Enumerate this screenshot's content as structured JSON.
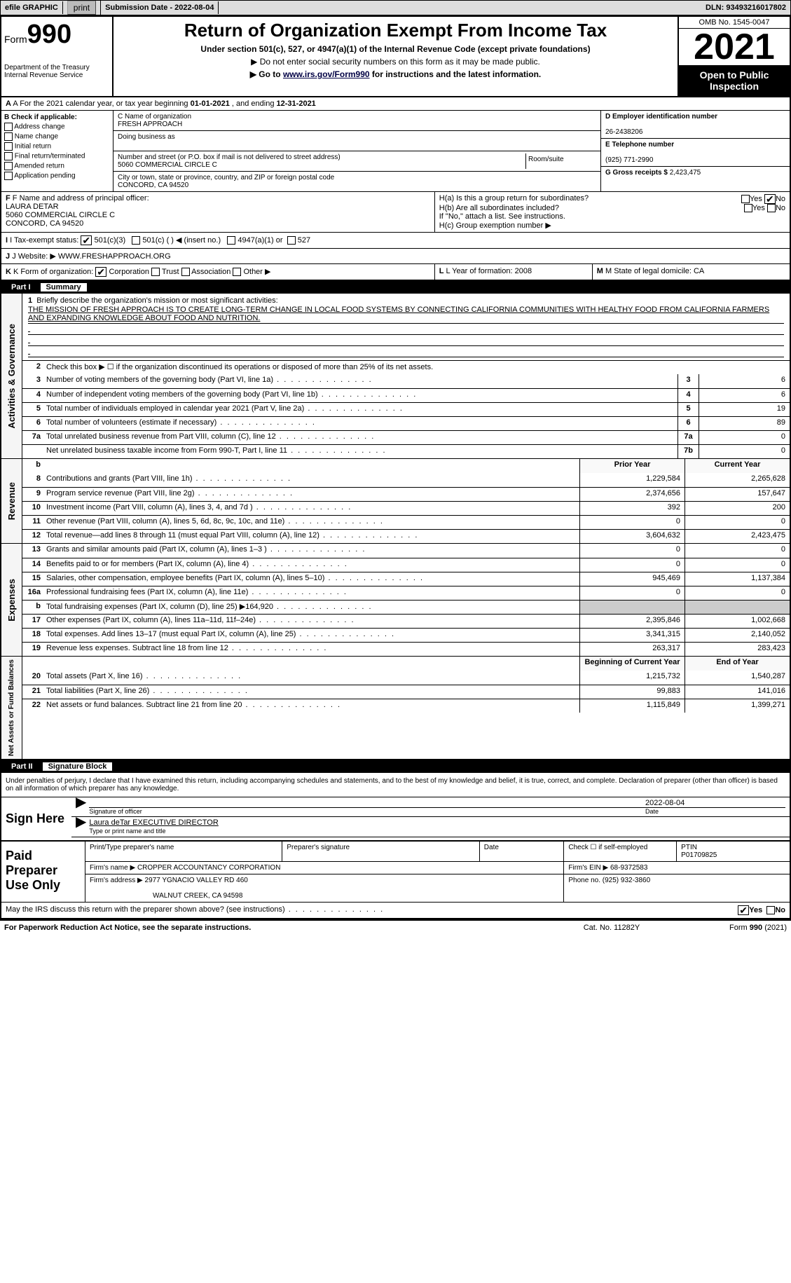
{
  "topbar": {
    "efile": "efile GRAPHIC",
    "print": "print",
    "submission_label": "Submission Date - ",
    "submission_date": "2022-08-04",
    "dln_label": "DLN: ",
    "dln": "93493216017802"
  },
  "header": {
    "form_word": "Form",
    "form_num": "990",
    "title": "Return of Organization Exempt From Income Tax",
    "subtitle": "Under section 501(c), 527, or 4947(a)(1) of the Internal Revenue Code (except private foundations)",
    "note1": "▶ Do not enter social security numbers on this form as it may be made public.",
    "note2": "▶ Go to ",
    "link": "www.irs.gov/Form990",
    "note2b": " for instructions and the latest information.",
    "dept": "Department of the Treasury",
    "irs": "Internal Revenue Service",
    "omb": "OMB No. 1545-0047",
    "year": "2021",
    "inspect1": "Open to Public",
    "inspect2": "Inspection"
  },
  "a": {
    "label": "A For the 2021 calendar year, or tax year beginning ",
    "begin": "01-01-2021",
    "mid": " , and ending ",
    "end": "12-31-2021"
  },
  "b": {
    "label": "B Check if applicable:",
    "opts": [
      "Address change",
      "Name change",
      "Initial return",
      "Final return/terminated",
      "Amended return",
      "Application pending"
    ]
  },
  "c": {
    "name_label": "C Name of organization",
    "name": "FRESH APPROACH",
    "dba_label": "Doing business as",
    "street_label": "Number and street (or P.O. box if mail is not delivered to street address)",
    "room_label": "Room/suite",
    "street": "5060 COMMERCIAL CIRCLE C",
    "city_label": "City or town, state or province, country, and ZIP or foreign postal code",
    "city": "CONCORD, CA  94520"
  },
  "d": {
    "label": "D Employer identification number",
    "value": "26-2438206"
  },
  "e": {
    "label": "E Telephone number",
    "value": "(925) 771-2990"
  },
  "g": {
    "label": "G Gross receipts $ ",
    "value": "2,423,475"
  },
  "f": {
    "label": "F  Name and address of principal officer:",
    "name": "LAURA DETAR",
    "street": "5060 COMMERCIAL CIRCLE C",
    "city": "CONCORD, CA  94520"
  },
  "h": {
    "a": "H(a)  Is this a group return for subordinates?",
    "b": "H(b)  Are all subordinates included?",
    "note": "If \"No,\" attach a list. See instructions.",
    "c": "H(c)  Group exemption number ▶",
    "yes": "Yes",
    "no": "No"
  },
  "i": {
    "label": "I  Tax-exempt status:",
    "o1": "501(c)(3)",
    "o2": "501(c) (   ) ◀ (insert no.)",
    "o3": "4947(a)(1) or",
    "o4": "527"
  },
  "j": {
    "label": "J  Website: ▶  ",
    "value": "WWW.FRESHAPPROACH.ORG"
  },
  "k": {
    "label": "K Form of organization:",
    "o1": "Corporation",
    "o2": "Trust",
    "o3": "Association",
    "o4": "Other ▶"
  },
  "l": {
    "label": "L Year of formation: ",
    "value": "2008"
  },
  "m": {
    "label": "M State of legal domicile: ",
    "value": "CA"
  },
  "part1": {
    "num": "Part I",
    "title": "Summary"
  },
  "sides": {
    "ag": "Activities & Governance",
    "rev": "Revenue",
    "exp": "Expenses",
    "na": "Net Assets or Fund Balances"
  },
  "s1": {
    "label": "Briefly describe the organization's mission or most significant activities:",
    "text": "THE MISSION OF FRESH APPROACH IS TO CREATE LONG-TERM CHANGE IN LOCAL FOOD SYSTEMS BY CONNECTING CALIFORNIA COMMUNITIES WITH HEALTHY FOOD FROM CALIFORNIA FARMERS AND EXPANDING KNOWLEDGE ABOUT FOOD AND NUTRITION."
  },
  "s2": "Check this box ▶ ☐ if the organization discontinued its operations or disposed of more than 25% of its net assets.",
  "lines_ag": [
    {
      "n": "3",
      "d": "Number of voting members of the governing body (Part VI, line 1a)",
      "box": "3",
      "v": "6"
    },
    {
      "n": "4",
      "d": "Number of independent voting members of the governing body (Part VI, line 1b)",
      "box": "4",
      "v": "6"
    },
    {
      "n": "5",
      "d": "Total number of individuals employed in calendar year 2021 (Part V, line 2a)",
      "box": "5",
      "v": "19"
    },
    {
      "n": "6",
      "d": "Total number of volunteers (estimate if necessary)",
      "box": "6",
      "v": "89"
    },
    {
      "n": "7a",
      "d": "Total unrelated business revenue from Part VIII, column (C), line 12",
      "box": "7a",
      "v": "0"
    },
    {
      "n": "",
      "d": "Net unrelated business taxable income from Form 990-T, Part I, line 11",
      "box": "7b",
      "v": "0"
    }
  ],
  "col_hdr": {
    "prior": "Prior Year",
    "curr": "Current Year"
  },
  "rev": [
    {
      "n": "8",
      "d": "Contributions and grants (Part VIII, line 1h)",
      "p": "1,229,584",
      "c": "2,265,628"
    },
    {
      "n": "9",
      "d": "Program service revenue (Part VIII, line 2g)",
      "p": "2,374,656",
      "c": "157,647"
    },
    {
      "n": "10",
      "d": "Investment income (Part VIII, column (A), lines 3, 4, and 7d )",
      "p": "392",
      "c": "200"
    },
    {
      "n": "11",
      "d": "Other revenue (Part VIII, column (A), lines 5, 6d, 8c, 9c, 10c, and 11e)",
      "p": "0",
      "c": "0"
    },
    {
      "n": "12",
      "d": "Total revenue—add lines 8 through 11 (must equal Part VIII, column (A), line 12)",
      "p": "3,604,632",
      "c": "2,423,475"
    }
  ],
  "exp": [
    {
      "n": "13",
      "d": "Grants and similar amounts paid (Part IX, column (A), lines 1–3 )",
      "p": "0",
      "c": "0"
    },
    {
      "n": "14",
      "d": "Benefits paid to or for members (Part IX, column (A), line 4)",
      "p": "0",
      "c": "0"
    },
    {
      "n": "15",
      "d": "Salaries, other compensation, employee benefits (Part IX, column (A), lines 5–10)",
      "p": "945,469",
      "c": "1,137,384"
    },
    {
      "n": "16a",
      "d": "Professional fundraising fees (Part IX, column (A), line 11e)",
      "p": "0",
      "c": "0"
    },
    {
      "n": "b",
      "d": "Total fundraising expenses (Part IX, column (D), line 25) ▶164,920",
      "p": "grey",
      "c": "grey"
    },
    {
      "n": "17",
      "d": "Other expenses (Part IX, column (A), lines 11a–11d, 11f–24e)",
      "p": "2,395,846",
      "c": "1,002,668"
    },
    {
      "n": "18",
      "d": "Total expenses. Add lines 13–17 (must equal Part IX, column (A), line 25)",
      "p": "3,341,315",
      "c": "2,140,052"
    },
    {
      "n": "19",
      "d": "Revenue less expenses. Subtract line 18 from line 12",
      "p": "263,317",
      "c": "283,423"
    }
  ],
  "na_hdr": {
    "beg": "Beginning of Current Year",
    "end": "End of Year"
  },
  "na": [
    {
      "n": "20",
      "d": "Total assets (Part X, line 16)",
      "p": "1,215,732",
      "c": "1,540,287"
    },
    {
      "n": "21",
      "d": "Total liabilities (Part X, line 26)",
      "p": "99,883",
      "c": "141,016"
    },
    {
      "n": "22",
      "d": "Net assets or fund balances. Subtract line 21 from line 20",
      "p": "1,115,849",
      "c": "1,399,271"
    }
  ],
  "part2": {
    "num": "Part II",
    "title": "Signature Block"
  },
  "penalty": "Under penalties of perjury, I declare that I have examined this return, including accompanying schedules and statements, and to the best of my knowledge and belief, it is true, correct, and complete. Declaration of preparer (other than officer) is based on all information of which preparer has any knowledge.",
  "sign": {
    "here": "Sign Here",
    "sig_of": "Signature of officer",
    "date": "Date",
    "sig_date": "2022-08-04",
    "name": "Laura deTar EXECUTIVE DIRECTOR",
    "name_label": "Type or print name and title"
  },
  "prep": {
    "label": "Paid Preparer Use Only",
    "h1": "Print/Type preparer's name",
    "h2": "Preparer's signature",
    "h3": "Date",
    "h4": "Check ☐ if self-employed",
    "h5": "PTIN",
    "ptin": "P01709825",
    "firm_label": "Firm's name   ▶ ",
    "firm": "CROPPER ACCOUNTANCY CORPORATION",
    "ein_label": "Firm's EIN ▶ ",
    "ein": "68-9372583",
    "addr_label": "Firm's address ▶ ",
    "addr1": "2977 YGNACIO VALLEY RD 460",
    "addr2": "WALNUT CREEK, CA  94598",
    "phone_label": "Phone no. ",
    "phone": "(925) 932-3860"
  },
  "discuss": {
    "q": "May the IRS discuss this return with the preparer shown above? (see instructions)",
    "yes": "Yes",
    "no": "No"
  },
  "footer": {
    "left": "For Paperwork Reduction Act Notice, see the separate instructions.",
    "mid": "Cat. No. 11282Y",
    "right": "Form 990 (2021)"
  }
}
